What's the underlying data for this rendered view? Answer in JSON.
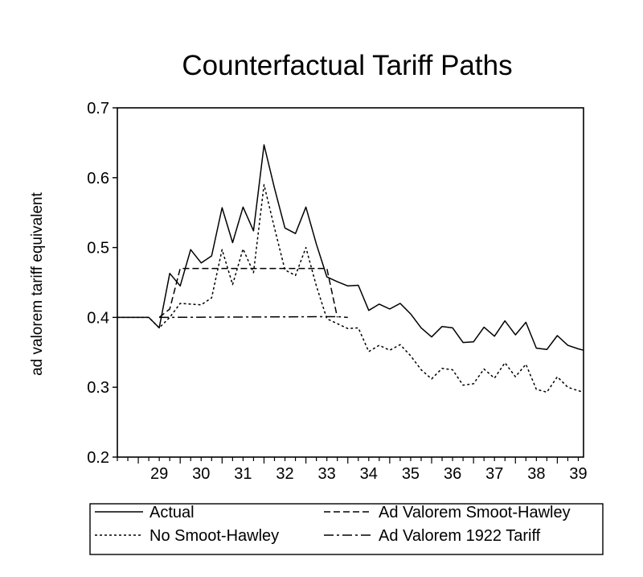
{
  "chart_data": {
    "type": "line",
    "title": "Counterfactual Tariff Paths",
    "xlabel": "",
    "ylabel": "ad valorem tariff equivalent",
    "xlim": [
      28.5,
      39.625
    ],
    "ylim": [
      0.2,
      0.7
    ],
    "x_ticks": [
      29,
      30,
      31,
      32,
      33,
      34,
      35,
      36,
      37,
      38,
      39
    ],
    "x_tick_labels": [
      "29",
      "30",
      "31",
      "32",
      "33",
      "34",
      "35",
      "36",
      "37",
      "38",
      "39"
    ],
    "y_ticks": [
      0.2,
      0.3,
      0.4,
      0.5,
      0.6,
      0.7
    ],
    "y_tick_labels": [
      "0.2",
      "0.3",
      "0.4",
      "0.5",
      "0.6",
      "0.7"
    ],
    "legend_position": "bottom",
    "series": [
      {
        "name": "Actual",
        "dash": "solid",
        "x": [
          28.5,
          29.25,
          29.5,
          29.75,
          30.0,
          30.25,
          30.5,
          30.75,
          31.0,
          31.25,
          31.5,
          31.75,
          32.0,
          32.25,
          32.5,
          32.75,
          33.0,
          33.25,
          33.5,
          33.75,
          34.0,
          34.25,
          34.5,
          34.75,
          35.0,
          35.25,
          35.5,
          35.75,
          36.0,
          36.25,
          36.5,
          36.75,
          37.0,
          37.25,
          37.5,
          37.75,
          38.0,
          38.25,
          38.5,
          38.75,
          39.0,
          39.25,
          39.5,
          39.625
        ],
        "y": [
          0.4,
          0.4,
          0.385,
          0.463,
          0.445,
          0.497,
          0.478,
          0.488,
          0.557,
          0.507,
          0.558,
          0.524,
          0.647,
          0.585,
          0.528,
          0.52,
          0.558,
          0.505,
          0.458,
          0.451,
          0.445,
          0.446,
          0.41,
          0.419,
          0.412,
          0.42,
          0.405,
          0.385,
          0.372,
          0.387,
          0.385,
          0.364,
          0.365,
          0.386,
          0.373,
          0.395,
          0.375,
          0.393,
          0.356,
          0.354,
          0.374,
          0.36,
          0.355,
          0.353
        ]
      },
      {
        "name": "No Smoot-Hawley",
        "dash": "dotted",
        "x": [
          28.5,
          29.25,
          29.5,
          29.75,
          30.0,
          30.25,
          30.5,
          30.75,
          31.0,
          31.25,
          31.5,
          31.75,
          32.0,
          32.25,
          32.5,
          32.75,
          33.0,
          33.25,
          33.5,
          33.75,
          34.0,
          34.25,
          34.5,
          34.75,
          35.0,
          35.25,
          35.5,
          35.75,
          36.0,
          36.25,
          36.5,
          36.75,
          37.0,
          37.25,
          37.5,
          37.75,
          38.0,
          38.25,
          38.5,
          38.75,
          39.0,
          39.25,
          39.5,
          39.625
        ],
        "y": [
          0.4,
          0.4,
          0.385,
          0.4,
          0.42,
          0.419,
          0.418,
          0.428,
          0.497,
          0.447,
          0.498,
          0.464,
          0.59,
          0.528,
          0.468,
          0.46,
          0.5,
          0.445,
          0.398,
          0.391,
          0.384,
          0.385,
          0.351,
          0.36,
          0.353,
          0.361,
          0.345,
          0.325,
          0.312,
          0.327,
          0.325,
          0.303,
          0.305,
          0.326,
          0.313,
          0.335,
          0.315,
          0.333,
          0.297,
          0.293,
          0.315,
          0.3,
          0.295,
          0.293
        ]
      },
      {
        "name": "Ad Valorem Smoot-Hawley",
        "dash": "dashed",
        "x": [
          29.5,
          29.75,
          30.0,
          30.25,
          33.0,
          33.25,
          33.5,
          33.75
        ],
        "y": [
          0.4,
          0.412,
          0.47,
          0.47,
          0.47,
          0.47,
          0.47,
          0.4
        ]
      },
      {
        "name": "Ad Valorem 1922 Tariff",
        "dash": "dashdot",
        "x": [
          29.5,
          33.5,
          33.75,
          34.0
        ],
        "y": [
          0.4,
          0.401,
          0.401,
          0.4
        ]
      }
    ]
  }
}
